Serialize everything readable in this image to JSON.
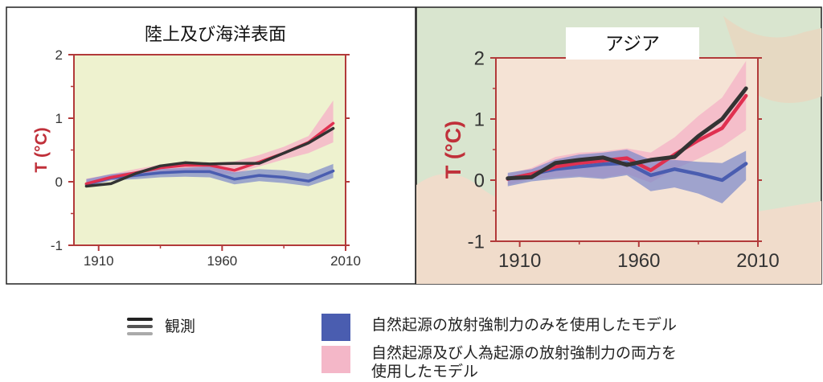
{
  "chart_data": [
    {
      "type": "line",
      "title": "陸上及び海洋表面",
      "ylabel": "T (°C)",
      "ylim": [
        -1,
        2
      ],
      "xlim": [
        1900,
        2010
      ],
      "x_ticks": [
        1910,
        1960,
        2010
      ],
      "y_ticks": [
        -1,
        0,
        1,
        2
      ],
      "x_tick_labels": [
        "1910",
        "1960",
        "2010"
      ],
      "y_tick_labels": [
        "-1",
        "0",
        "1",
        "2"
      ],
      "plot_background": "#eef2cf",
      "bands": [
        {
          "color": "#f4b7c8",
          "x": [
            1905,
            1915,
            1925,
            1935,
            1945,
            1955,
            1965,
            1975,
            1985,
            1995,
            2005
          ],
          "lower": [
            -0.05,
            0.02,
            0.07,
            0.14,
            0.15,
            0.13,
            0.12,
            0.24,
            0.35,
            0.45,
            0.62
          ],
          "upper": [
            0.05,
            0.12,
            0.2,
            0.27,
            0.3,
            0.3,
            0.32,
            0.42,
            0.55,
            0.72,
            1.28
          ]
        },
        {
          "color": "#7b87c9",
          "x": [
            1905,
            1915,
            1925,
            1935,
            1945,
            1955,
            1965,
            1975,
            1985,
            1995,
            2005
          ],
          "lower": [
            -0.08,
            0.02,
            0.04,
            0.07,
            0.08,
            0.07,
            -0.04,
            0.01,
            -0.02,
            -0.07,
            0.06
          ],
          "upper": [
            0.04,
            0.12,
            0.16,
            0.2,
            0.22,
            0.24,
            0.15,
            0.2,
            0.18,
            0.13,
            0.28
          ]
        }
      ],
      "series": [
        {
          "role": "model-natural",
          "color": "#4a5db0",
          "x": [
            1905,
            1915,
            1925,
            1935,
            1945,
            1955,
            1965,
            1975,
            1985,
            1995,
            2005
          ],
          "values": [
            -0.04,
            0.06,
            0.1,
            0.14,
            0.16,
            0.16,
            0.04,
            0.1,
            0.07,
            0.01,
            0.17
          ]
        },
        {
          "role": "model-all",
          "color": "#e03050",
          "x": [
            1905,
            1915,
            1925,
            1935,
            1945,
            1955,
            1965,
            1975,
            1985,
            1995,
            2005
          ],
          "values": [
            -0.03,
            0.07,
            0.14,
            0.22,
            0.26,
            0.26,
            0.18,
            0.31,
            0.45,
            0.62,
            0.92
          ]
        },
        {
          "role": "observed",
          "color": "#333333",
          "x": [
            1905,
            1915,
            1925,
            1935,
            1945,
            1955,
            1965,
            1975,
            1985,
            1995,
            2005
          ],
          "values": [
            -0.07,
            -0.03,
            0.13,
            0.25,
            0.3,
            0.28,
            0.29,
            0.29,
            0.45,
            0.61,
            0.84
          ]
        }
      ]
    },
    {
      "type": "line",
      "title": "アジア",
      "ylabel": "T (°C)",
      "ylim": [
        -1,
        2
      ],
      "xlim": [
        1900,
        2010
      ],
      "x_ticks": [
        1910,
        1960,
        2010
      ],
      "y_ticks": [
        -1,
        0,
        1,
        2
      ],
      "x_tick_labels": [
        "1910",
        "1960",
        "2010"
      ],
      "y_tick_labels": [
        "-1",
        "0",
        "1",
        "2"
      ],
      "plot_background": "#f5e3d5",
      "bands": [
        {
          "color": "#f4b7c8",
          "x": [
            1905,
            1915,
            1925,
            1935,
            1945,
            1955,
            1965,
            1975,
            1985,
            1995,
            2005
          ],
          "lower": [
            -0.08,
            0.02,
            0.05,
            0.07,
            0.04,
            0.1,
            -0.04,
            0.18,
            0.35,
            0.55,
            0.82
          ],
          "upper": [
            0.1,
            0.2,
            0.38,
            0.45,
            0.47,
            0.52,
            0.45,
            0.7,
            1.05,
            1.35,
            1.95
          ]
        },
        {
          "color": "#7b87c9",
          "x": [
            1905,
            1915,
            1925,
            1935,
            1945,
            1955,
            1965,
            1975,
            1985,
            1995,
            2005
          ],
          "lower": [
            -0.1,
            -0.02,
            0.02,
            0.05,
            0.02,
            0.08,
            -0.18,
            -0.12,
            -0.22,
            -0.38,
            0.0
          ],
          "upper": [
            0.12,
            0.18,
            0.34,
            0.42,
            0.45,
            0.5,
            0.33,
            0.33,
            0.3,
            0.28,
            0.48
          ]
        }
      ],
      "series": [
        {
          "role": "model-natural",
          "color": "#4a5db0",
          "x": [
            1905,
            1915,
            1925,
            1935,
            1945,
            1955,
            1965,
            1975,
            1985,
            1995,
            2005
          ],
          "values": [
            0.02,
            0.1,
            0.18,
            0.22,
            0.26,
            0.28,
            0.08,
            0.18,
            0.1,
            0.0,
            0.27
          ]
        },
        {
          "role": "model-all",
          "color": "#e03050",
          "x": [
            1905,
            1915,
            1925,
            1935,
            1945,
            1955,
            1965,
            1975,
            1985,
            1995,
            2005
          ],
          "values": [
            0.02,
            0.1,
            0.22,
            0.28,
            0.32,
            0.36,
            0.16,
            0.42,
            0.65,
            0.85,
            1.38
          ]
        },
        {
          "role": "observed",
          "color": "#333333",
          "x": [
            1905,
            1915,
            1925,
            1935,
            1945,
            1955,
            1965,
            1975,
            1985,
            1995,
            2005
          ],
          "values": [
            0.03,
            0.05,
            0.28,
            0.33,
            0.37,
            0.25,
            0.33,
            0.38,
            0.72,
            1.0,
            1.5
          ]
        }
      ]
    }
  ],
  "legend": {
    "observed": {
      "label": "観測",
      "colors": [
        "#222222",
        "#555555",
        "#aaaaaa"
      ]
    },
    "natural": {
      "label": "自然起源の放射強制力のみを使用したモデル",
      "color": "#4a5db0"
    },
    "both": {
      "label_line1": "自然起源及び人為起源の放射強制力の両方を",
      "label_line2": "使用したモデル",
      "color": "#f4b7c8"
    }
  },
  "colors": {
    "axis": "#b23a3a",
    "ylabel": "#c0303a"
  }
}
